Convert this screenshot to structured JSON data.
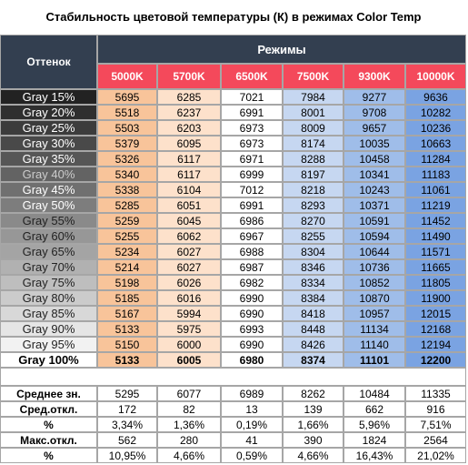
{
  "title": "Стабильность цветовой температуры (К) в режимах Color Temp",
  "header": {
    "hue_label": "Оттенок",
    "modes_label": "Режимы",
    "columns": [
      "5000K",
      "5700K",
      "6500K",
      "7500K",
      "9300K",
      "10000K"
    ]
  },
  "rows": [
    {
      "label": "Gray 15%",
      "values": [
        5695,
        6285,
        7021,
        7984,
        9277,
        9636
      ]
    },
    {
      "label": "Gray 20%",
      "values": [
        5518,
        6237,
        6991,
        8001,
        9708,
        10282
      ]
    },
    {
      "label": "Gray 25%",
      "values": [
        5503,
        6203,
        6973,
        8009,
        9657,
        10236
      ]
    },
    {
      "label": "Gray 30%",
      "values": [
        5379,
        6095,
        6973,
        8174,
        10035,
        10663
      ]
    },
    {
      "label": "Gray 35%",
      "values": [
        5326,
        6117,
        6971,
        8288,
        10458,
        11284
      ]
    },
    {
      "label": "Gray 40%",
      "values": [
        5340,
        6117,
        6999,
        8197,
        10341,
        11183
      ]
    },
    {
      "label": "Gray 45%",
      "values": [
        5338,
        6104,
        7012,
        8218,
        10243,
        11061
      ]
    },
    {
      "label": "Gray 50%",
      "values": [
        5285,
        6051,
        6991,
        8293,
        10371,
        11219
      ]
    },
    {
      "label": "Gray 55%",
      "values": [
        5259,
        6045,
        6986,
        8270,
        10591,
        11452
      ]
    },
    {
      "label": "Gray 60%",
      "values": [
        5255,
        6062,
        6967,
        8255,
        10594,
        11490
      ]
    },
    {
      "label": "Gray 65%",
      "values": [
        5234,
        6027,
        6988,
        8304,
        10644,
        11571
      ]
    },
    {
      "label": "Gray 70%",
      "values": [
        5214,
        6027,
        6987,
        8346,
        10736,
        11665
      ]
    },
    {
      "label": "Gray 75%",
      "values": [
        5198,
        6026,
        6982,
        8334,
        10852,
        11805
      ]
    },
    {
      "label": "Gray 80%",
      "values": [
        5185,
        6016,
        6990,
        8384,
        10870,
        11900
      ]
    },
    {
      "label": "Gray 85%",
      "values": [
        5167,
        5994,
        6990,
        8418,
        10957,
        12015
      ]
    },
    {
      "label": "Gray 90%",
      "values": [
        5133,
        5975,
        6993,
        8448,
        11134,
        12168
      ]
    },
    {
      "label": "Gray 95%",
      "values": [
        5150,
        6000,
        6990,
        8426,
        11140,
        12194
      ]
    },
    {
      "label": "Gray 100%",
      "values": [
        5133,
        6005,
        6980,
        8374,
        11101,
        12200
      ]
    }
  ],
  "summary": [
    {
      "label": "Среднее зн.",
      "values": [
        5295,
        6077,
        6989,
        8262,
        10484,
        11335
      ]
    },
    {
      "label": "Сред.откл.",
      "values": [
        172,
        82,
        13,
        139,
        662,
        916
      ]
    },
    {
      "label": "%",
      "values": [
        "3,34%",
        "1,36%",
        "0,19%",
        "1,66%",
        "5,96%",
        "7,51%"
      ]
    },
    {
      "label": "Макс.откл.",
      "values": [
        562,
        280,
        41,
        390,
        1824,
        2564
      ]
    },
    {
      "label": "%",
      "values": [
        "10,95%",
        "4,66%",
        "0,59%",
        "4,66%",
        "16,43%",
        "21,02%"
      ]
    }
  ]
}
